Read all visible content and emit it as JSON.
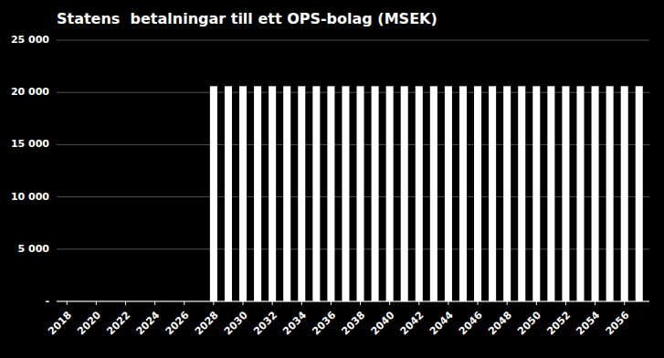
{
  "chart_data": {
    "type": "bar",
    "title": "Statens  betalningar till ett OPS-bolag (MSEK)",
    "x": [
      2018,
      2019,
      2020,
      2021,
      2022,
      2023,
      2024,
      2025,
      2026,
      2027,
      2028,
      2029,
      2030,
      2031,
      2032,
      2033,
      2034,
      2035,
      2036,
      2037,
      2038,
      2039,
      2040,
      2041,
      2042,
      2043,
      2044,
      2045,
      2046,
      2047,
      2048,
      2049,
      2050,
      2051,
      2052,
      2053,
      2054,
      2055,
      2056,
      2057
    ],
    "values": [
      0,
      0,
      0,
      0,
      0,
      0,
      0,
      0,
      0,
      0,
      20600,
      20600,
      20600,
      20600,
      20600,
      20600,
      20600,
      20600,
      20600,
      20600,
      20600,
      20600,
      20600,
      20600,
      20600,
      20600,
      20600,
      20600,
      20600,
      20600,
      20600,
      20600,
      20600,
      20600,
      20600,
      20600,
      20600,
      20600,
      20600,
      20600
    ],
    "color": "#ffffff",
    "xlim": [
      2017.3,
      2057.7
    ],
    "xticks": [
      2018,
      2020,
      2022,
      2024,
      2026,
      2028,
      2030,
      2032,
      2034,
      2036,
      2038,
      2040,
      2042,
      2044,
      2046,
      2048,
      2050,
      2052,
      2054,
      2056
    ],
    "ylim": [
      0,
      25000
    ],
    "yticks": [
      {
        "value": 0,
        "label": "-"
      },
      {
        "value": 5000,
        "label": "5 000"
      },
      {
        "value": 10000,
        "label": "10 000"
      },
      {
        "value": 15000,
        "label": "15 000"
      },
      {
        "value": 20000,
        "label": "20 000"
      },
      {
        "value": 25000,
        "label": "25 000"
      }
    ],
    "grid": true
  }
}
